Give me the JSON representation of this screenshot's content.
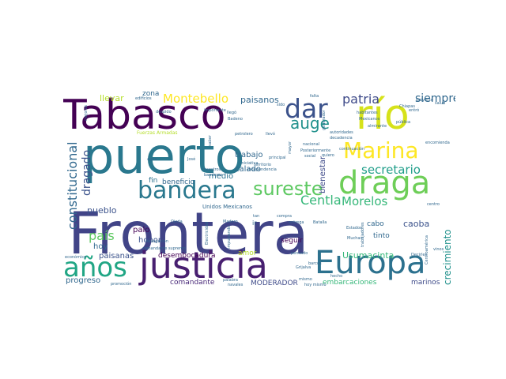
{
  "words": [
    {
      "text": "Frontera",
      "color": "#414487"
    },
    {
      "text": "puerto",
      "color": "#2a788e"
    },
    {
      "text": "Tabasco",
      "color": "#440154"
    },
    {
      "text": "río",
      "color": "#d6e21a"
    },
    {
      "text": "justicia",
      "color": "#481f70"
    },
    {
      "text": "Europa",
      "color": "#2c718e"
    },
    {
      "text": "draga",
      "color": "#6ece58"
    },
    {
      "text": "bandera",
      "color": "#2a788e"
    },
    {
      "text": "años",
      "color": "#21a685"
    },
    {
      "text": "dar",
      "color": "#3b528b"
    },
    {
      "text": "Marina",
      "color": "#fde725"
    },
    {
      "text": "sureste",
      "color": "#5ec962"
    },
    {
      "text": "auge",
      "color": "#21918c"
    },
    {
      "text": "patria",
      "color": "#3e4a89"
    },
    {
      "text": "siempre",
      "color": "#31688e"
    },
    {
      "text": "Montebello",
      "color": "#fde725"
    },
    {
      "text": "secretario",
      "color": "#1f9e89"
    },
    {
      "text": "Centla",
      "color": "#35b779"
    },
    {
      "text": "Morelos",
      "color": "#35b779"
    },
    {
      "text": "constitucional",
      "color": "#31688e"
    },
    {
      "text": "dragado",
      "color": "#3b528b"
    },
    {
      "text": "crecimiento",
      "color": "#21918c"
    },
    {
      "text": "país",
      "color": "#5ec962"
    },
    {
      "text": "bienestar",
      "color": "#3e4a89"
    },
    {
      "text": "caoba",
      "color": "#3b528b"
    },
    {
      "text": "Usumacinta",
      "color": "#35b779"
    },
    {
      "text": "paisanos",
      "color": "#31688e"
    },
    {
      "text": "llevar",
      "color": "#b5de2b"
    },
    {
      "text": "zona",
      "color": "#31688e"
    },
    {
      "text": "calado",
      "color": "#31688e"
    },
    {
      "text": "trabajo",
      "color": "#31688e"
    },
    {
      "text": "beneficio",
      "color": "#31688e"
    },
    {
      "text": "medio",
      "color": "#2c718e"
    },
    {
      "text": "fin",
      "color": "#2c718e"
    },
    {
      "text": "pueblo",
      "color": "#3b528b"
    },
    {
      "text": "palo",
      "color": "#440154"
    },
    {
      "text": "honor",
      "color": "#3b528b"
    },
    {
      "text": "hoy",
      "color": "#31688e"
    },
    {
      "text": "paisanas",
      "color": "#3b528b"
    },
    {
      "text": "desembocadura",
      "color": "#440154"
    },
    {
      "text": "comandante",
      "color": "#482878"
    },
    {
      "text": "amor",
      "color": "#b5de2b"
    },
    {
      "text": "MODERADOR",
      "color": "#3e4a89"
    },
    {
      "text": "embarcaciones",
      "color": "#35b779"
    },
    {
      "text": "marinos",
      "color": "#3e4a89"
    },
    {
      "text": "tinto",
      "color": "#31688e"
    },
    {
      "text": "cabo",
      "color": "#31688e"
    },
    {
      "text": "seguir",
      "color": "#440154"
    },
    {
      "text": "progreso",
      "color": "#31688e"
    },
    {
      "text": "Unidos Mexicanos",
      "color": "#31688e"
    },
    {
      "text": "territorio",
      "color": "#31688e"
    },
    {
      "text": "independencia",
      "color": "#31688e"
    },
    {
      "text": "principal",
      "color": "#31688e"
    },
    {
      "text": "agua",
      "color": "#31688e"
    },
    {
      "text": "José",
      "color": "#31688e"
    },
    {
      "text": "Fuerzas Armadas",
      "color": "#b5de2b"
    },
    {
      "text": "llegó",
      "color": "#31688e"
    },
    {
      "text": "Madero",
      "color": "#31688e"
    },
    {
      "text": "Grijalva",
      "color": "#31688e"
    },
    {
      "text": "Chiapas",
      "color": "#31688e"
    },
    {
      "text": "habitantes",
      "color": "#31688e"
    },
    {
      "text": "Mexicanos",
      "color": "#31688e"
    },
    {
      "text": "almirante",
      "color": "#31688e"
    },
    {
      "text": "autoridades",
      "color": "#31688e"
    },
    {
      "text": "decadencia",
      "color": "#31688e"
    },
    {
      "text": "pública",
      "color": "#31688e"
    },
    {
      "text": "proyecto",
      "color": "#31688e"
    },
    {
      "text": "salud",
      "color": "#31688e"
    },
    {
      "text": "quiero",
      "color": "#31688e"
    },
    {
      "text": "Posteriormente",
      "color": "#31688e"
    },
    {
      "text": "nacional",
      "color": "#31688e"
    },
    {
      "text": "Ojeda",
      "color": "#31688e"
    },
    {
      "text": "compra",
      "color": "#31688e"
    },
    {
      "text": "entrega",
      "color": "#31688e"
    },
    {
      "text": "Batalla",
      "color": "#31688e"
    },
    {
      "text": "Electricidad",
      "color": "#31688e"
    },
    {
      "text": "impulsando",
      "color": "#31688e"
    },
    {
      "text": "comandante supremo",
      "color": "#31688e"
    },
    {
      "text": "navegación",
      "color": "#31688e"
    },
    {
      "text": "económico",
      "color": "#31688e"
    },
    {
      "text": "promoción",
      "color": "#31688e"
    },
    {
      "text": "palabra",
      "color": "#31688e"
    },
    {
      "text": "navales",
      "color": "#31688e"
    },
    {
      "text": "mismo",
      "color": "#31688e"
    },
    {
      "text": "pensado",
      "color": "#31688e"
    },
    {
      "text": "Decirles",
      "color": "#31688e"
    },
    {
      "text": "Centroamérica",
      "color": "#31688e"
    },
    {
      "text": "centro",
      "color": "#31688e"
    },
    {
      "text": "mejores",
      "color": "#31688e"
    },
    {
      "text": "edificios",
      "color": "#31688e"
    },
    {
      "text": "despido",
      "color": "#31688e"
    },
    {
      "text": "Badeno",
      "color": "#31688e"
    },
    {
      "text": "petrolero",
      "color": "#31688e"
    },
    {
      "text": "llevó",
      "color": "#31688e"
    },
    {
      "text": "mayor",
      "color": "#31688e"
    },
    {
      "text": "saber",
      "color": "#31688e"
    },
    {
      "text": "tan",
      "color": "#31688e"
    },
    {
      "text": "ir",
      "color": "#31688e"
    },
    {
      "text": "social",
      "color": "#31688e"
    },
    {
      "text": "continuación",
      "color": "#31688e"
    },
    {
      "text": "encomienda",
      "color": "#31688e"
    },
    {
      "text": "hoy mismo",
      "color": "#31688e"
    },
    {
      "text": "vinos",
      "color": "#31688e"
    },
    {
      "text": "Muchas",
      "color": "#31688e"
    },
    {
      "text": "trabajadores",
      "color": "#31688e"
    },
    {
      "text": "generador",
      "color": "#31688e"
    },
    {
      "text": "Estados",
      "color": "#31688e"
    },
    {
      "text": "importante",
      "color": "#31688e"
    },
    {
      "text": "sido",
      "color": "#31688e"
    },
    {
      "text": "falta",
      "color": "#31688e"
    },
    {
      "text": "entró",
      "color": "#31688e"
    },
    {
      "text": "hecho",
      "color": "#31688e"
    },
    {
      "text": "barcos",
      "color": "#31688e"
    },
    {
      "text": "banderas",
      "color": "#31688e"
    },
    {
      "text": "maestros",
      "color": "#31688e"
    },
    {
      "text": "iniciativa",
      "color": "#31688e"
    }
  ]
}
